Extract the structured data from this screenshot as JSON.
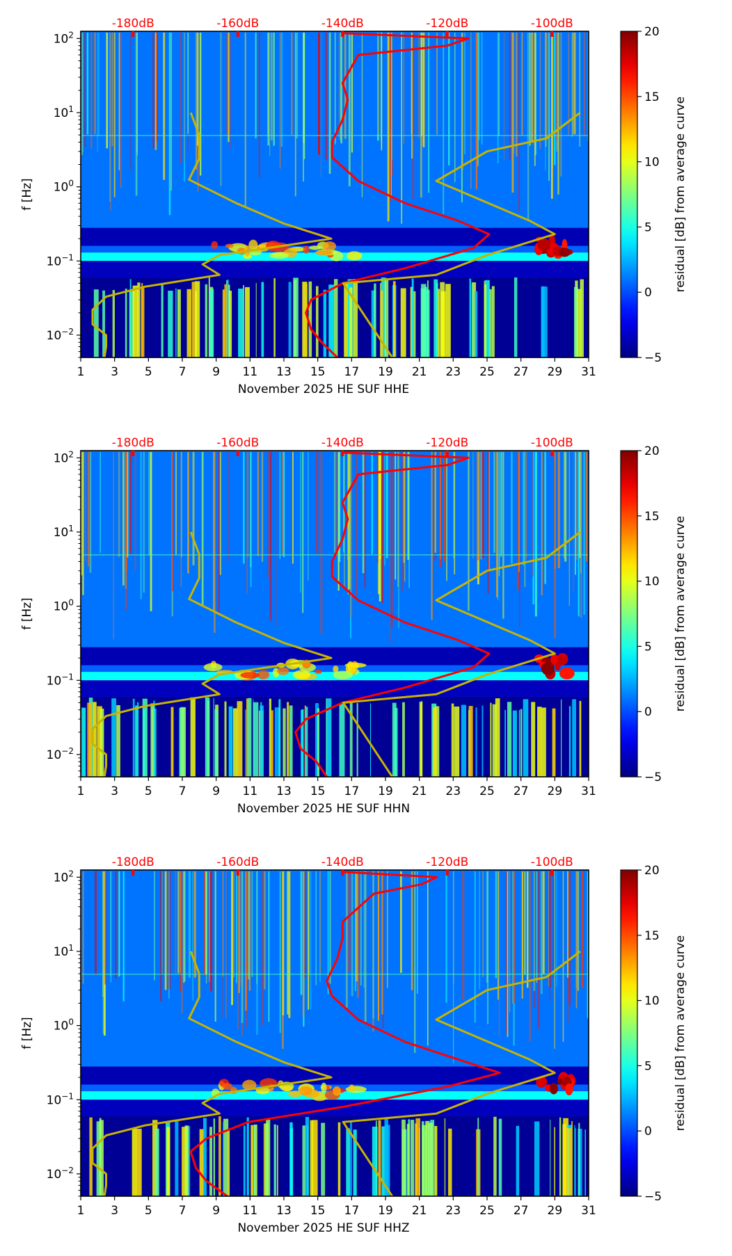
{
  "chart_data": [
    {
      "type": "heatmap",
      "title": "",
      "xlabel": "November 2025 HE SUF  HHE",
      "ylabel": "f [Hz]",
      "channel": "HHE",
      "x_ticks": [
        "1",
        "3",
        "5",
        "7",
        "9",
        "11",
        "13",
        "15",
        "17",
        "19",
        "21",
        "23",
        "25",
        "27",
        "29",
        "31"
      ],
      "xlim": [
        1,
        31
      ],
      "y_scale": "log",
      "ylim": [
        0.005,
        125
      ],
      "y_ticks": [
        {
          "base": "10",
          "exp": "2",
          "value": 100
        },
        {
          "base": "10",
          "exp": "1",
          "value": 10
        },
        {
          "base": "10",
          "exp": "0",
          "value": 1
        },
        {
          "base": "10",
          "exp": "−1",
          "value": 0.1
        },
        {
          "base": "10",
          "exp": "−2",
          "value": 0.01
        }
      ],
      "top_ticks": [
        "-180dB",
        "-160dB",
        "-140dB",
        "-120dB",
        "-100dB"
      ],
      "top_tick_values_db": [
        -180,
        -160,
        -140,
        -120,
        -100
      ],
      "top_axis_range_db": [
        -190,
        -93
      ],
      "colorbar": {
        "label": "residual [dB] from average curve",
        "ticks": [
          "20",
          "15",
          "10",
          "5",
          "0",
          "−5"
        ],
        "range": [
          -5,
          20
        ],
        "colormap": "jet"
      },
      "series": [
        {
          "name": "average PSD curve",
          "color": "#ff0000",
          "points_db_hz": [
            [
              -141,
              0.005
            ],
            [
              -144,
              0.008
            ],
            [
              -146,
              0.012
            ],
            [
              -147,
              0.02
            ],
            [
              -146,
              0.03
            ],
            [
              -140,
              0.05
            ],
            [
              -128,
              0.08
            ],
            [
              -115,
              0.15
            ],
            [
              -112,
              0.23
            ],
            [
              -118,
              0.35
            ],
            [
              -128,
              0.6
            ],
            [
              -137,
              1.2
            ],
            [
              -142,
              2.5
            ],
            [
              -142,
              4
            ],
            [
              -140,
              8
            ],
            [
              -139,
              15
            ],
            [
              -140,
              25
            ],
            [
              -137,
              60
            ],
            [
              -120,
              80
            ],
            [
              -116,
              100
            ],
            [
              -140,
              118
            ]
          ]
        },
        {
          "name": "NLNM",
          "color": "#c8b400",
          "points_day_hz": [
            [
              2.4,
              0.005
            ],
            [
              2.5,
              0.007
            ],
            [
              2.5,
              0.01
            ],
            [
              1.7,
              0.014
            ],
            [
              1.7,
              0.022
            ],
            [
              2.5,
              0.033
            ],
            [
              4.8,
              0.045
            ],
            [
              9.2,
              0.065
            ],
            [
              8.2,
              0.09
            ],
            [
              9.2,
              0.12
            ],
            [
              15.8,
              0.2
            ],
            [
              13,
              0.32
            ],
            [
              10.2,
              0.6
            ],
            [
              7.4,
              1.25
            ],
            [
              8,
              2.4
            ],
            [
              8,
              5
            ],
            [
              7.5,
              10
            ]
          ]
        },
        {
          "name": "NHNM",
          "color": "#c8b400",
          "points_day_hz": [
            [
              19.4,
              0.005
            ],
            [
              16.5,
              0.05
            ],
            [
              22,
              0.065
            ],
            [
              25,
              0.12
            ],
            [
              29,
              0.23
            ],
            [
              27.5,
              0.35
            ],
            [
              22,
              1.2
            ],
            [
              25,
              3
            ],
            [
              28.5,
              4.5
            ],
            [
              30.5,
              10
            ]
          ]
        }
      ]
    },
    {
      "type": "heatmap",
      "title": "",
      "xlabel": "November 2025 HE SUF  HHN",
      "ylabel": "f [Hz]",
      "channel": "HHN",
      "x_ticks": [
        "1",
        "3",
        "5",
        "7",
        "9",
        "11",
        "13",
        "15",
        "17",
        "19",
        "21",
        "23",
        "25",
        "27",
        "29",
        "31"
      ],
      "xlim": [
        1,
        31
      ],
      "y_scale": "log",
      "ylim": [
        0.005,
        125
      ],
      "y_ticks": [
        {
          "base": "10",
          "exp": "2",
          "value": 100
        },
        {
          "base": "10",
          "exp": "1",
          "value": 10
        },
        {
          "base": "10",
          "exp": "0",
          "value": 1
        },
        {
          "base": "10",
          "exp": "−1",
          "value": 0.1
        },
        {
          "base": "10",
          "exp": "−2",
          "value": 0.01
        }
      ],
      "top_ticks": [
        "-180dB",
        "-160dB",
        "-140dB",
        "-120dB",
        "-100dB"
      ],
      "top_tick_values_db": [
        -180,
        -160,
        -140,
        -120,
        -100
      ],
      "top_axis_range_db": [
        -190,
        -93
      ],
      "colorbar": {
        "label": "residual [dB] from average curve",
        "ticks": [
          "20",
          "15",
          "10",
          "5",
          "0",
          "−5"
        ],
        "range": [
          -5,
          20
        ],
        "colormap": "jet"
      },
      "series": [
        {
          "name": "average PSD curve",
          "color": "#ff0000",
          "points_db_hz": [
            [
              -143,
              0.005
            ],
            [
              -145,
              0.008
            ],
            [
              -148,
              0.012
            ],
            [
              -149,
              0.02
            ],
            [
              -147,
              0.03
            ],
            [
              -140,
              0.05
            ],
            [
              -128,
              0.08
            ],
            [
              -115,
              0.15
            ],
            [
              -112,
              0.23
            ],
            [
              -118,
              0.35
            ],
            [
              -128,
              0.6
            ],
            [
              -137,
              1.2
            ],
            [
              -142,
              2.5
            ],
            [
              -142,
              4
            ],
            [
              -140,
              8
            ],
            [
              -139,
              15
            ],
            [
              -140,
              25
            ],
            [
              -137,
              60
            ],
            [
              -120,
              80
            ],
            [
              -116,
              100
            ],
            [
              -140,
              118
            ]
          ]
        },
        {
          "name": "NLNM",
          "color": "#c8b400",
          "points_day_hz": [
            [
              2.4,
              0.005
            ],
            [
              2.5,
              0.007
            ],
            [
              2.5,
              0.01
            ],
            [
              1.7,
              0.014
            ],
            [
              1.7,
              0.022
            ],
            [
              2.5,
              0.033
            ],
            [
              4.8,
              0.045
            ],
            [
              9.2,
              0.065
            ],
            [
              8.2,
              0.09
            ],
            [
              9.2,
              0.12
            ],
            [
              15.8,
              0.2
            ],
            [
              13,
              0.32
            ],
            [
              10.2,
              0.6
            ],
            [
              7.4,
              1.25
            ],
            [
              8,
              2.4
            ],
            [
              8,
              5
            ],
            [
              7.5,
              10
            ]
          ]
        },
        {
          "name": "NHNM",
          "color": "#c8b400",
          "points_day_hz": [
            [
              19.4,
              0.005
            ],
            [
              16.5,
              0.05
            ],
            [
              22,
              0.065
            ],
            [
              25,
              0.12
            ],
            [
              29,
              0.23
            ],
            [
              27.5,
              0.35
            ],
            [
              22,
              1.2
            ],
            [
              25,
              3
            ],
            [
              28.5,
              4.5
            ],
            [
              30.5,
              10
            ]
          ]
        }
      ]
    },
    {
      "type": "heatmap",
      "title": "",
      "xlabel": "November 2025 HE SUF  HHZ",
      "ylabel": "f [Hz]",
      "channel": "HHZ",
      "x_ticks": [
        "1",
        "3",
        "5",
        "7",
        "9",
        "11",
        "13",
        "15",
        "17",
        "19",
        "21",
        "23",
        "25",
        "27",
        "29",
        "31"
      ],
      "xlim": [
        1,
        31
      ],
      "y_scale": "log",
      "ylim": [
        0.005,
        125
      ],
      "y_ticks": [
        {
          "base": "10",
          "exp": "2",
          "value": 100
        },
        {
          "base": "10",
          "exp": "1",
          "value": 10
        },
        {
          "base": "10",
          "exp": "0",
          "value": 1
        },
        {
          "base": "10",
          "exp": "−1",
          "value": 0.1
        },
        {
          "base": "10",
          "exp": "−2",
          "value": 0.01
        }
      ],
      "top_ticks": [
        "-180dB",
        "-160dB",
        "-140dB",
        "-120dB",
        "-100dB"
      ],
      "top_tick_values_db": [
        -180,
        -160,
        -140,
        -120,
        -100
      ],
      "top_axis_range_db": [
        -190,
        -93
      ],
      "colorbar": {
        "label": "residual [dB] from average curve",
        "ticks": [
          "20",
          "15",
          "10",
          "5",
          "0",
          "−5"
        ],
        "range": [
          -5,
          20
        ],
        "colormap": "jet"
      },
      "series": [
        {
          "name": "average PSD curve",
          "color": "#ff0000",
          "points_db_hz": [
            [
              -162,
              0.005
            ],
            [
              -166,
              0.008
            ],
            [
              -168,
              0.012
            ],
            [
              -169,
              0.02
            ],
            [
              -166,
              0.03
            ],
            [
              -158,
              0.05
            ],
            [
              -140,
              0.08
            ],
            [
              -120,
              0.15
            ],
            [
              -110,
              0.23
            ],
            [
              -118,
              0.35
            ],
            [
              -128,
              0.6
            ],
            [
              -137,
              1.2
            ],
            [
              -142,
              2.5
            ],
            [
              -143,
              4
            ],
            [
              -141,
              8
            ],
            [
              -140,
              15
            ],
            [
              -140,
              25
            ],
            [
              -134,
              60
            ],
            [
              -125,
              80
            ],
            [
              -122,
              100
            ],
            [
              -140,
              118
            ]
          ]
        },
        {
          "name": "NLNM",
          "color": "#c8b400",
          "points_day_hz": [
            [
              2.4,
              0.005
            ],
            [
              2.5,
              0.007
            ],
            [
              2.5,
              0.01
            ],
            [
              1.7,
              0.014
            ],
            [
              1.7,
              0.022
            ],
            [
              2.5,
              0.033
            ],
            [
              4.8,
              0.045
            ],
            [
              9.2,
              0.065
            ],
            [
              8.2,
              0.09
            ],
            [
              9.2,
              0.12
            ],
            [
              15.8,
              0.2
            ],
            [
              13,
              0.32
            ],
            [
              10.2,
              0.6
            ],
            [
              7.4,
              1.25
            ],
            [
              8,
              2.4
            ],
            [
              8,
              5
            ],
            [
              7.5,
              10
            ]
          ]
        },
        {
          "name": "NHNM",
          "color": "#c8b400",
          "points_day_hz": [
            [
              19.4,
              0.005
            ],
            [
              16.5,
              0.05
            ],
            [
              22,
              0.065
            ],
            [
              25,
              0.12
            ],
            [
              29,
              0.23
            ],
            [
              27.5,
              0.35
            ],
            [
              22,
              1.2
            ],
            [
              25,
              3
            ],
            [
              28.5,
              4.5
            ],
            [
              30.5,
              10
            ]
          ]
        }
      ]
    }
  ]
}
